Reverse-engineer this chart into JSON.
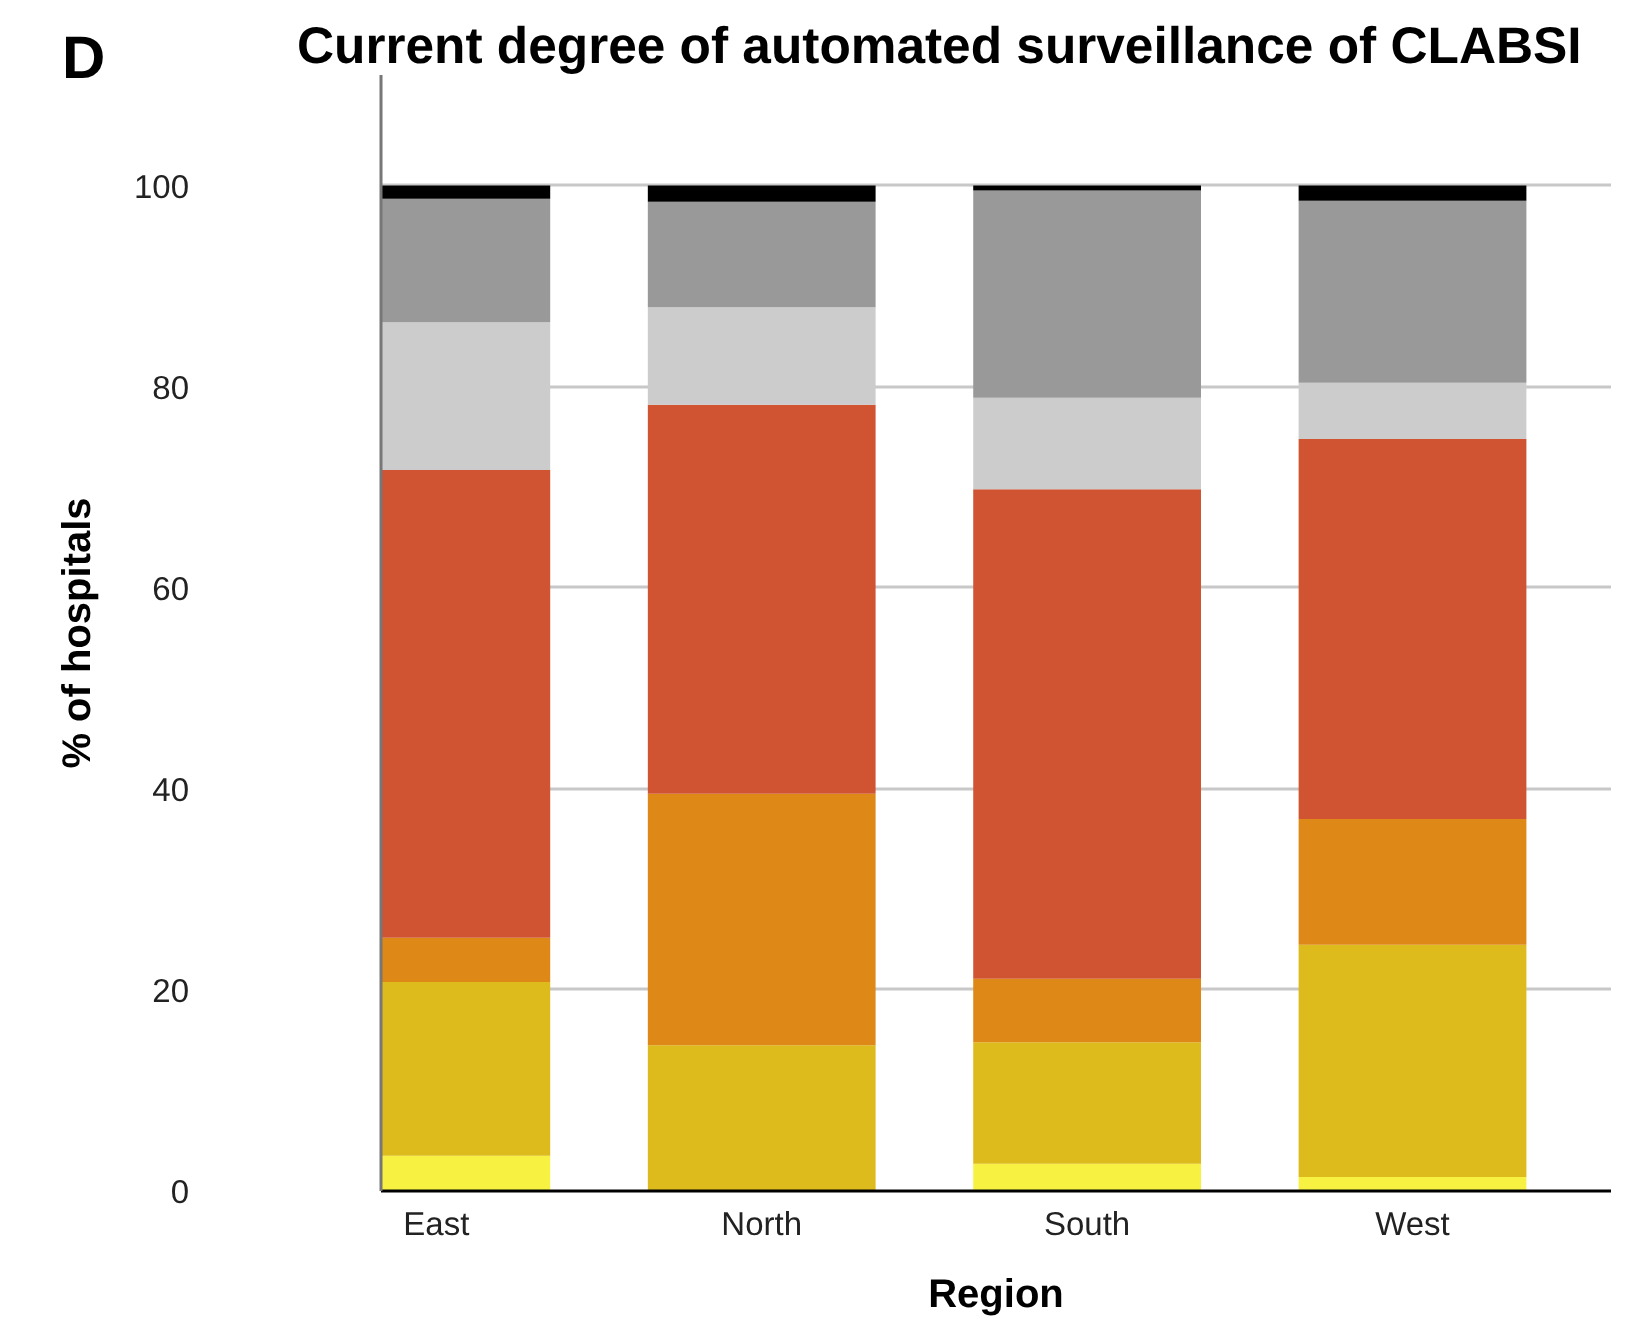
{
  "chart_data": {
    "type": "bar",
    "title": "Current degree of automated surveillance of CLABSI",
    "xlabel": "Region",
    "ylabel": "% of hospitals",
    "annotations": [
      "D"
    ],
    "categories": [
      "East",
      "North",
      "South",
      "West"
    ],
    "stacked": true,
    "series": [
      {
        "color": "#f7f242",
        "values": [
          3.5,
          0,
          2.7,
          1.4
        ]
      },
      {
        "color": "#debb1c",
        "values": [
          17.3,
          14.5,
          12.1,
          23.1
        ]
      },
      {
        "color": "#de8818",
        "values": [
          4.4,
          25.0,
          6.3,
          12.5
        ]
      },
      {
        "color": "#d05431",
        "values": [
          46.5,
          38.7,
          48.7,
          37.8
        ]
      },
      {
        "color": "#cccccc",
        "values": [
          14.7,
          9.7,
          9.1,
          5.6
        ]
      },
      {
        "color": "#999999",
        "values": [
          12.3,
          10.5,
          20.6,
          18.1
        ]
      },
      {
        "color": "#000000",
        "values": [
          1.3,
          1.6,
          0.5,
          1.5
        ]
      }
    ],
    "ylim": [
      0,
      111
    ],
    "yticks": [
      0,
      20,
      40,
      60,
      80,
      100
    ],
    "grid": "y"
  }
}
